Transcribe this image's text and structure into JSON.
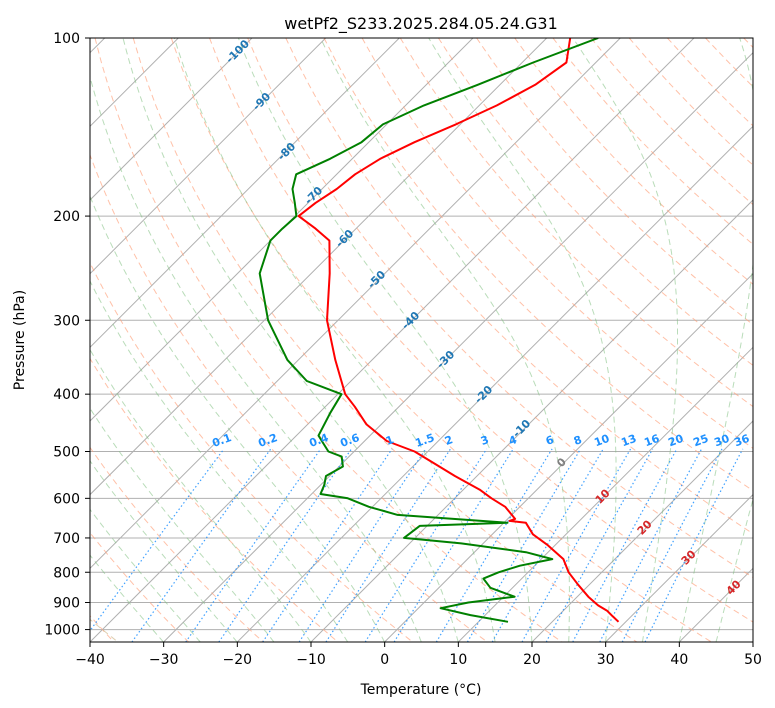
{
  "chart_data": {
    "type": "line",
    "title": "wetPf2_S233.2025.284.05.24.G31",
    "xlabel": "Temperature (°C)",
    "ylabel": "Pressure (hPa)",
    "xlim": [
      -40,
      50
    ],
    "ylim_pressure": [
      1050,
      100
    ],
    "y_scale": "log",
    "skew": true,
    "grid": true,
    "x_ticks": [
      "−40",
      "−30",
      "−20",
      "−10",
      "0",
      "10",
      "20",
      "30",
      "40",
      "50"
    ],
    "x_tick_values": [
      -40,
      -30,
      -20,
      -10,
      0,
      10,
      20,
      30,
      40,
      50
    ],
    "y_ticks": [
      "100",
      "200",
      "300",
      "400",
      "500",
      "600",
      "700",
      "800",
      "900",
      "1000"
    ],
    "y_tick_values": [
      100,
      200,
      300,
      400,
      500,
      600,
      700,
      800,
      900,
      1000
    ],
    "dry_adiabat_labels": [
      "-100",
      "-90",
      "-80",
      "-70",
      "-60",
      "-50",
      "-40",
      "-30",
      "-20",
      "-10"
    ],
    "moist_adiabat_labels": [
      "0",
      "10",
      "20",
      "30",
      "40"
    ],
    "mixing_ratio_labels": [
      "0.1",
      "0.2",
      "0.4",
      "0.6",
      "1",
      "1.5",
      "2",
      "3",
      "4",
      "6",
      "8",
      "10",
      "13",
      "16",
      "20",
      "25",
      "30",
      "36"
    ],
    "series": [
      {
        "color": "#ff0000",
        "points": [
          [
            -56.8,
            100
          ],
          [
            -54,
            110
          ],
          [
            -55.2,
            120
          ],
          [
            -57.6,
            130
          ],
          [
            -60.6,
            140
          ],
          [
            -63.8,
            150
          ],
          [
            -66.2,
            160
          ],
          [
            -67.5,
            170
          ],
          [
            -68,
            180
          ],
          [
            -69,
            190
          ],
          [
            -69.5,
            200
          ],
          [
            -65.5,
            210
          ],
          [
            -62,
            220
          ],
          [
            -57.5,
            250
          ],
          [
            -51.5,
            300
          ],
          [
            -45,
            350
          ],
          [
            -39,
            400
          ],
          [
            -36,
            420
          ],
          [
            -32,
            450
          ],
          [
            -27,
            480
          ],
          [
            -21.8,
            500
          ],
          [
            -17.3,
            525
          ],
          [
            -13,
            550
          ],
          [
            -7.8,
            580
          ],
          [
            -5,
            600
          ],
          [
            -2,
            620
          ],
          [
            1,
            650
          ],
          [
            0.5,
            655
          ],
          [
            3,
            660
          ],
          [
            5.5,
            690
          ],
          [
            9,
            720
          ],
          [
            13,
            760
          ],
          [
            15.5,
            800
          ],
          [
            18.5,
            840
          ],
          [
            21.5,
            880
          ],
          [
            24,
            910
          ],
          [
            26,
            930
          ],
          [
            27.5,
            950
          ],
          [
            29,
            970
          ]
        ]
      },
      {
        "color": "#008000",
        "points": [
          [
            -53,
            100
          ],
          [
            -58.5,
            110
          ],
          [
            -63,
            120
          ],
          [
            -67.5,
            130
          ],
          [
            -70.5,
            140
          ],
          [
            -71,
            150
          ],
          [
            -73,
            160
          ],
          [
            -75.5,
            170
          ],
          [
            -74,
            180
          ],
          [
            -71.8,
            190
          ],
          [
            -69.8,
            200
          ],
          [
            -70,
            210
          ],
          [
            -70,
            220
          ],
          [
            -67,
            250
          ],
          [
            -59.5,
            300
          ],
          [
            -51.5,
            350
          ],
          [
            -46,
            380
          ],
          [
            -39.5,
            400
          ],
          [
            -38.5,
            430
          ],
          [
            -37,
            470
          ],
          [
            -33.5,
            500
          ],
          [
            -31,
            510
          ],
          [
            -29.5,
            530
          ],
          [
            -30.5,
            550
          ],
          [
            -29.5,
            570
          ],
          [
            -28.8,
            590
          ],
          [
            -24.5,
            600
          ],
          [
            -20.5,
            620
          ],
          [
            -15.5,
            640
          ],
          [
            0.5,
            660
          ],
          [
            -11,
            668
          ],
          [
            -11.5,
            700
          ],
          [
            -3,
            715
          ],
          [
            7,
            740
          ],
          [
            11.5,
            760
          ],
          [
            8,
            780
          ],
          [
            6,
            800
          ],
          [
            4.8,
            820
          ],
          [
            7,
            850
          ],
          [
            11.5,
            880
          ],
          [
            6,
            900
          ],
          [
            3,
            920
          ],
          [
            8,
            945
          ],
          [
            14,
            970
          ]
        ]
      }
    ]
  }
}
